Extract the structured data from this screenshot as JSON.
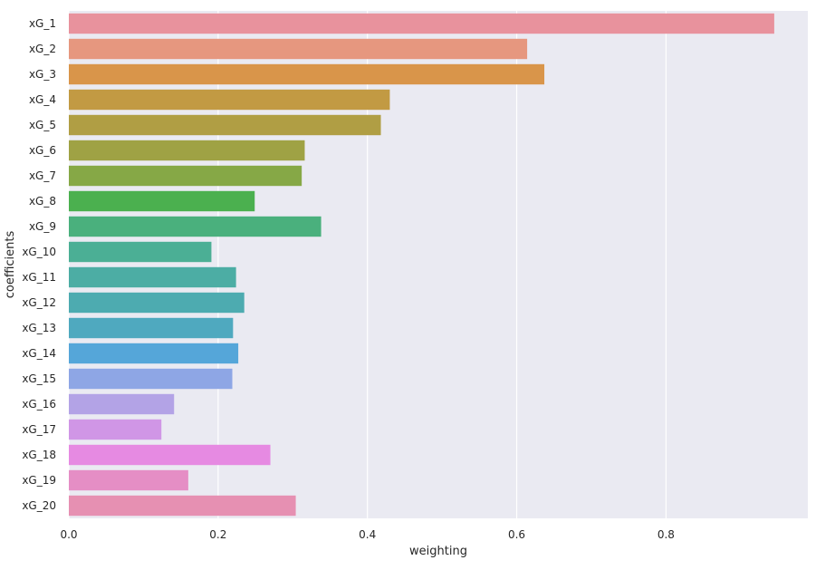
{
  "chart_data": {
    "type": "bar",
    "orientation": "horizontal",
    "title": "",
    "xlabel": "weighting",
    "ylabel": "coefficients",
    "xlim": [
      0,
      0.99
    ],
    "xticks": [
      0.0,
      0.2,
      0.4,
      0.6,
      0.8
    ],
    "xtick_labels": [
      "0.0",
      "0.2",
      "0.4",
      "0.6",
      "0.8"
    ],
    "grid": true,
    "categories": [
      "xG_1",
      "xG_2",
      "xG_3",
      "xG_4",
      "xG_5",
      "xG_6",
      "xG_7",
      "xG_8",
      "xG_9",
      "xG_10",
      "xG_11",
      "xG_12",
      "xG_13",
      "xG_14",
      "xG_15",
      "xG_16",
      "xG_17",
      "xG_18",
      "xG_19",
      "xG_20"
    ],
    "values": [
      0.945,
      0.614,
      0.637,
      0.43,
      0.418,
      0.316,
      0.312,
      0.249,
      0.338,
      0.191,
      0.224,
      0.235,
      0.22,
      0.227,
      0.219,
      0.141,
      0.124,
      0.27,
      0.16,
      0.304
    ],
    "colors": [
      "#e8929d",
      "#e6977f",
      "#d9954a",
      "#c29a43",
      "#b09e44",
      "#9fa244",
      "#86a846",
      "#4bb04f",
      "#4ab07d",
      "#4baf95",
      "#4cada4",
      "#4dabb0",
      "#4fa9bf",
      "#55a6d9",
      "#8ea6e5",
      "#b3a3e6",
      "#d096e6",
      "#e68ae2",
      "#e58ec5",
      "#e690b2"
    ],
    "plot_background": "#eaeaf2"
  }
}
